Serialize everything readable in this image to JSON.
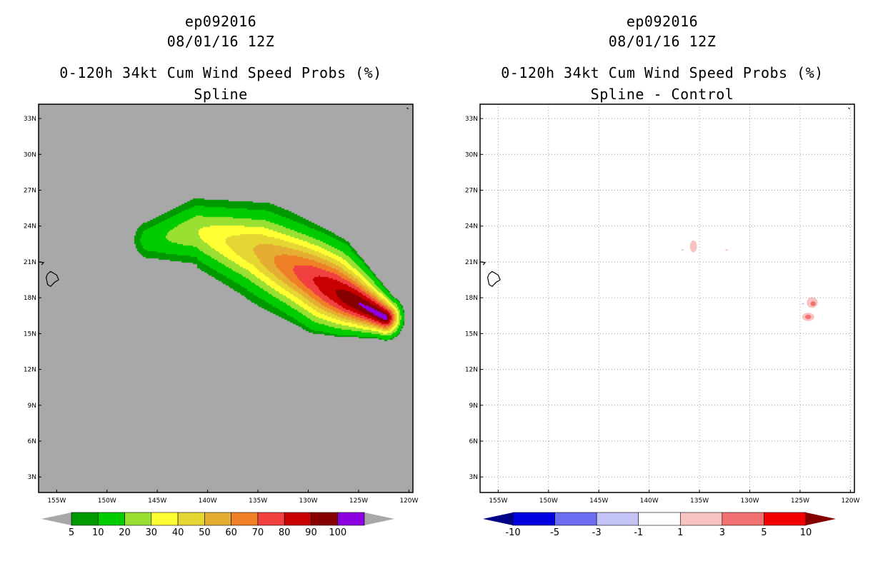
{
  "colors": {
    "ocean_left": "#a8a8a8",
    "ocean_right": "#ffffff",
    "coast": "#000000",
    "grid": "#9a9a9a"
  },
  "chart_data": [
    {
      "type": "heatmap",
      "panel": "left",
      "title_lines": [
        "ep092016",
        "08/01/16 12Z",
        "0-120h 34kt Cum Wind Speed Probs (%)",
        "Spline"
      ],
      "x_ticks": [
        "155W",
        "150W",
        "145W",
        "140W",
        "135W",
        "130W",
        "125W",
        "120W"
      ],
      "x_values": [
        -155,
        -150,
        -145,
        -140,
        -135,
        -130,
        -125,
        -120
      ],
      "y_ticks": [
        "3N",
        "6N",
        "9N",
        "12N",
        "15N",
        "18N",
        "21N",
        "24N",
        "27N",
        "30N",
        "33N"
      ],
      "y_values": [
        3,
        6,
        9,
        12,
        15,
        18,
        21,
        24,
        27,
        30,
        33
      ],
      "xlim": [
        -156.8,
        -119.6
      ],
      "ylim": [
        1.7,
        34.2
      ],
      "grid": false,
      "colorbar": {
        "labels": [
          "5",
          "10",
          "20",
          "30",
          "40",
          "50",
          "60",
          "70",
          "80",
          "90",
          "100"
        ],
        "colors": [
          "#009900",
          "#00cc00",
          "#99e033",
          "#ffff33",
          "#e6d633",
          "#e6ad33",
          "#f08028",
          "#f04040",
          "#c80000",
          "#870000",
          "#8c00e0"
        ],
        "end_color": "#a8a8a8"
      },
      "levels": [
        5,
        10,
        20,
        30,
        40,
        50,
        60,
        70,
        80,
        90
      ],
      "fill_colors": [
        "#009900",
        "#00cc00",
        "#99e033",
        "#ffff33",
        "#e6d633",
        "#e6ad33",
        "#f08028",
        "#f04040",
        "#c80000",
        "#870000",
        "#8c00e0"
      ],
      "swath": {
        "track": [
          [
            -145.8,
            22.9
          ],
          [
            -141,
            23.6
          ],
          [
            -135,
            22.0
          ],
          [
            -130,
            19.9
          ],
          [
            -126,
            18.0
          ],
          [
            -122.4,
            16.4
          ]
        ],
        "weights": [
          0.15,
          0.3,
          0.52,
          0.78,
          0.96,
          1.0
        ],
        "half_width_deg": 3.1
      }
    },
    {
      "type": "heatmap",
      "panel": "right",
      "title_lines": [
        "ep092016",
        "08/01/16 12Z",
        "0-120h 34kt Cum Wind Speed Probs (%)",
        "Spline - Control"
      ],
      "x_ticks": [
        "155W",
        "150W",
        "145W",
        "140W",
        "135W",
        "130W",
        "125W",
        "120W"
      ],
      "x_values": [
        -155,
        -150,
        -145,
        -140,
        -135,
        -130,
        -125,
        -120
      ],
      "y_ticks": [
        "3N",
        "6N",
        "9N",
        "12N",
        "15N",
        "18N",
        "21N",
        "24N",
        "27N",
        "30N",
        "33N"
      ],
      "y_values": [
        3,
        6,
        9,
        12,
        15,
        18,
        21,
        24,
        27,
        30,
        33
      ],
      "xlim": [
        -156.8,
        -119.6
      ],
      "ylim": [
        1.7,
        34.2
      ],
      "grid": true,
      "colorbar": {
        "labels": [
          "-10",
          "-5",
          "-3",
          "-1",
          "1",
          "3",
          "5",
          "10"
        ],
        "colors": [
          "#0000e0",
          "#6d6df2",
          "#c3c3f5",
          "#ffffff",
          "#f7c3c3",
          "#f27070",
          "#f00000"
        ],
        "end_left_color": "#000087",
        "end_right_color": "#870000"
      },
      "blobs": [
        {
          "lon": -135.6,
          "lat": 22.3,
          "rx": 0.35,
          "ry": 0.5,
          "color": "#f7c3c3"
        },
        {
          "lon": -123.8,
          "lat": 17.6,
          "rx": 0.55,
          "ry": 0.45,
          "color": "#f7c3c3"
        },
        {
          "lon": -123.7,
          "lat": 17.5,
          "rx": 0.25,
          "ry": 0.2,
          "color": "#f27070"
        },
        {
          "lon": -124.2,
          "lat": 16.4,
          "rx": 0.6,
          "ry": 0.35,
          "color": "#f7c3c3"
        },
        {
          "lon": -124.2,
          "lat": 16.4,
          "rx": 0.3,
          "ry": 0.18,
          "color": "#f27070"
        },
        {
          "lon": -136.7,
          "lat": 22.0,
          "rx": 0.1,
          "ry": 0.07,
          "color": "#f7c3c3"
        },
        {
          "lon": -132.3,
          "lat": 22.0,
          "rx": 0.12,
          "ry": 0.07,
          "color": "#f7c3c3"
        },
        {
          "lon": -124.7,
          "lat": 17.5,
          "rx": 0.12,
          "ry": 0.06,
          "color": "#c3c3f5"
        }
      ]
    }
  ]
}
